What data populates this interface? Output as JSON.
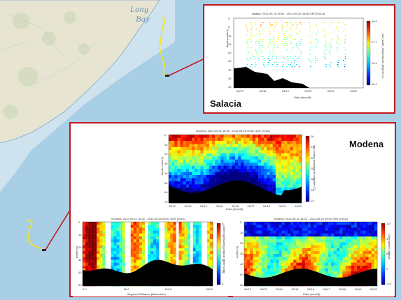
{
  "map": {
    "place_labels": [
      "Long",
      "Bay"
    ]
  },
  "insets": [
    {
      "title": "Salacia",
      "caption": "salacia: 2012-09-16 16:32 - 2012-09-22 08:08 GMT [m/LA]",
      "xlabel": "Date (mm/dd)",
      "ylabel": "depth (meters)",
      "colorbar_label": "sea_water_temperature (degrees C)",
      "x_ticks": [
        "09/17",
        "09/18",
        "09/19",
        "09/20",
        "09/21",
        "09/22"
      ],
      "y_ticks": [
        "0",
        "5",
        "10",
        "15",
        "20",
        "25",
        "30",
        "35",
        "40"
      ],
      "colorbar_ticks": [
        "28.5",
        "27.7",
        "26.9",
        "26.1"
      ]
    },
    {
      "title": "Modena"
    }
  ],
  "modena_plots": [
    {
      "caption": "modena: 2012-09-11 16:32 - 2012-09-20 09:51 GMT [m/LA]",
      "xlabel": "Date (mm/dd)",
      "ylabel": "depth (meters)",
      "colorbar_label": "sea_water_temperature (degrees C)",
      "x_ticks": [
        "09/12",
        "09/13",
        "09/14",
        "09/15",
        "09/16",
        "09/17",
        "09/18",
        "09/19",
        "09/20"
      ],
      "y_ticks": [
        "0",
        "10",
        "20",
        "30",
        "40",
        "50",
        "60",
        "70"
      ],
      "colorbar_ticks": [
        "26",
        "24",
        "22",
        "20",
        "18",
        "16",
        "14"
      ]
    },
    {
      "caption": "modena: 2012-09-11 16:32 - 2012-09-20 09:51 GMT [m/LA]",
      "xlabel": "Segment Distance (kilometers)",
      "ylabel": "depth (m)",
      "colorbar_label": "Colored Dissolved Organic Matter (ppb)",
      "x_ticks": [
        "0.0",
        "50.0",
        "100.0",
        "150.0"
      ],
      "y_ticks": [
        "0",
        "10",
        "20",
        "30",
        "40",
        "50"
      ],
      "colorbar_ticks": [
        "5",
        "4",
        "3",
        "2",
        "1",
        "0"
      ]
    },
    {
      "caption": "modena: 2012-09-11 16:32 - 2012-09-20 09:51 GMT [m/LA]",
      "xlabel": "Date (mm/dd)",
      "ylabel": "depth (m)",
      "colorbar_label": "Chlorophyll Log(ug/l)",
      "x_ticks": [
        "09/12",
        "09/13",
        "09/14",
        "09/15",
        "09/16",
        "09/17",
        "09/18",
        "09/19",
        "09/20"
      ],
      "y_ticks": [
        "0",
        "10",
        "20",
        "30",
        "40",
        "50",
        "60"
      ],
      "colorbar_ticks": [
        "1.5",
        "1",
        "0.5",
        "0",
        "-0.5"
      ]
    }
  ],
  "colors": {
    "ocean": "#a9cfe7",
    "land": "#e8e4d2",
    "frame": "#c4161c",
    "track": "#f2e51b"
  }
}
